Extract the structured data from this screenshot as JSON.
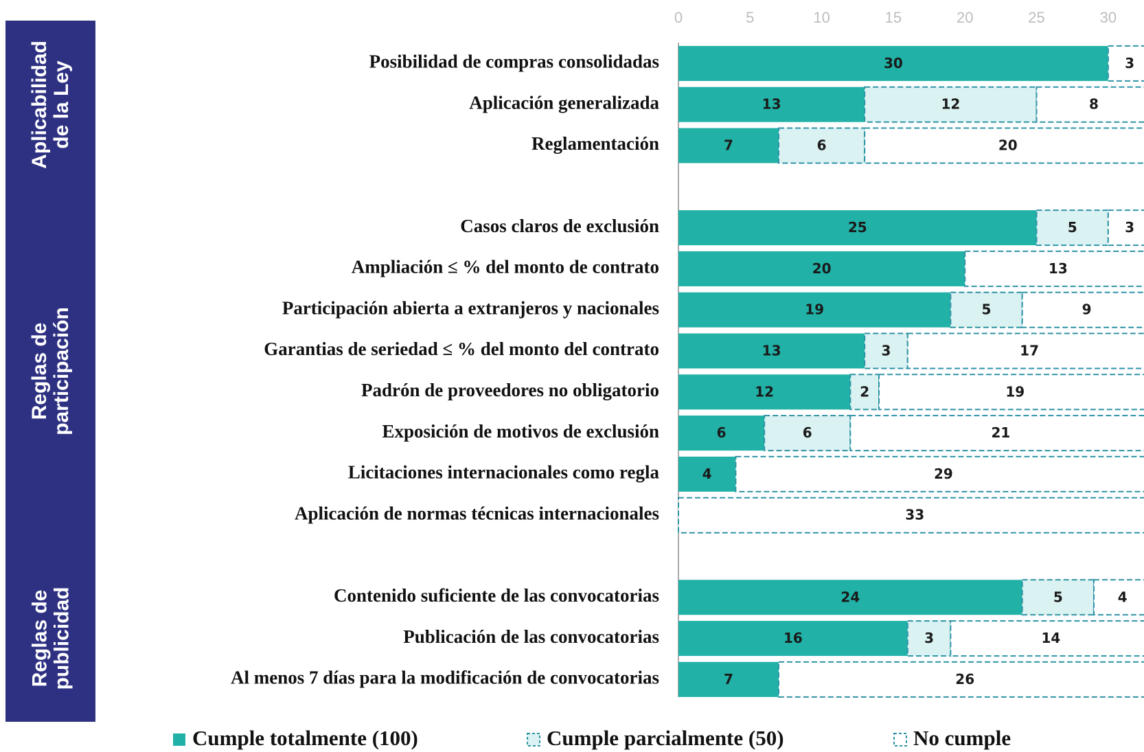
{
  "chart_data": {
    "type": "bar",
    "orientation": "horizontal",
    "stacked": true,
    "groups": [
      "Aplicabilidad de la Ley",
      "Reglas de participación",
      "Reglas de publicidad"
    ],
    "categories": [
      "Posibilidad de compras consolidadas",
      "Aplicación generalizada",
      "Reglamentación",
      null,
      "Casos claros de exclusión",
      "Ampliación ≤ % del monto de contrato",
      "Participación abierta a extranjeros y nacionales",
      "Garantias de seriedad ≤ % del monto del contrato",
      "Padrón de proveedores no obligatorio",
      "Exposición de motivos de exclusión",
      "Licitaciones internacionales como regla",
      "Aplicación de normas técnicas internacionales",
      null,
      "Contenido suficiente de las convocatorias",
      "Publicación de las convocatorias",
      "Al menos  7 días para la modificación de convocatorias"
    ],
    "series": [
      {
        "name": "Cumple totalmente (100)",
        "color": "#21b1a6",
        "dashed": false,
        "values": [
          30,
          13,
          7,
          null,
          25,
          20,
          19,
          13,
          12,
          6,
          4,
          0,
          null,
          24,
          16,
          7
        ]
      },
      {
        "name": "Cumple parcialmente (50)",
        "color": "#daf2f1",
        "dashed": true,
        "values": [
          0,
          12,
          6,
          null,
          5,
          0,
          5,
          3,
          2,
          6,
          0,
          0,
          null,
          5,
          3,
          0
        ]
      },
      {
        "name": "No cumple",
        "color": "#ffffff",
        "dashed": true,
        "values": [
          3,
          8,
          20,
          null,
          3,
          13,
          9,
          17,
          19,
          21,
          29,
          33,
          null,
          4,
          14,
          26
        ]
      }
    ],
    "xlim": [
      0,
      32.5
    ],
    "xticks": [
      0,
      5,
      10,
      15,
      20,
      25,
      30
    ]
  }
}
